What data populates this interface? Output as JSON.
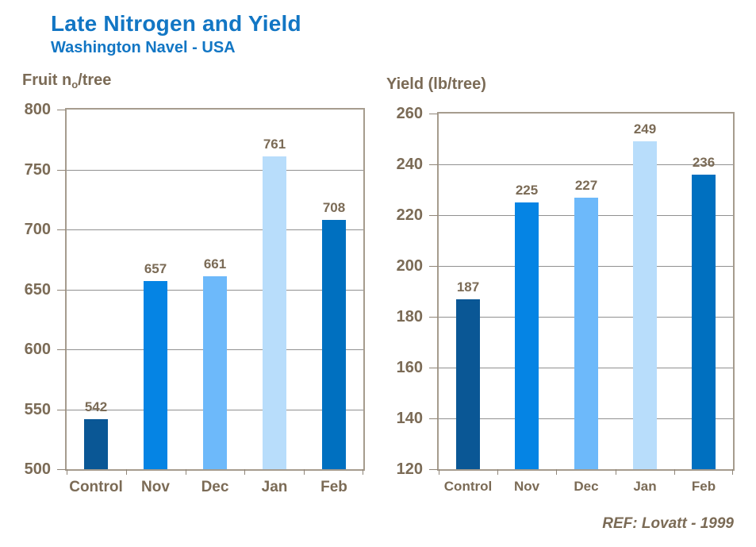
{
  "header": {
    "title": "Late Nitrogen and Yield",
    "subtitle": "Washington Navel - USA"
  },
  "footer": {
    "reference": "REF: Lovatt - 1999"
  },
  "colors": {
    "title_blue": "#1276c4",
    "axis_text_brown": "#7b6b56",
    "grid_gray": "#919191",
    "frame_tan": "#a69c8e",
    "bar_control": "#0a5795",
    "bar_nov": "#0584e4",
    "bar_dec": "#6db9fa",
    "bar_jan": "#b8ddfb",
    "bar_feb": "#0070c0"
  },
  "chart_data": [
    {
      "type": "bar",
      "title": "Fruit no/tree",
      "title_parts": {
        "prefix": "Fruit n",
        "sub": "o",
        "suffix": "/tree"
      },
      "categories": [
        "Control",
        "Nov",
        "Dec",
        "Jan",
        "Feb"
      ],
      "values": [
        542,
        657,
        661,
        761,
        708
      ],
      "ylim": [
        500,
        800
      ],
      "ytick_step": 50,
      "ytick_labels": [
        "500",
        "550",
        "600",
        "650",
        "700",
        "750",
        "800"
      ],
      "bar_colors": [
        "#0a5795",
        "#0584e4",
        "#6db9fa",
        "#b8ddfb",
        "#0070c0"
      ],
      "grid": true,
      "legend": "none",
      "xlabel": "",
      "ylabel": "Fruit no/tree"
    },
    {
      "type": "bar",
      "title": "Yield (lb/tree)",
      "categories": [
        "Control",
        "Nov",
        "Dec",
        "Jan",
        "Feb"
      ],
      "values": [
        187,
        225,
        227,
        249,
        236
      ],
      "ylim": [
        120,
        260
      ],
      "ytick_step": 20,
      "ytick_labels": [
        "120",
        "140",
        "160",
        "180",
        "200",
        "220",
        "240",
        "260"
      ],
      "bar_colors": [
        "#0a5795",
        "#0584e4",
        "#6db9fa",
        "#b8ddfb",
        "#0070c0"
      ],
      "grid": true,
      "legend": "none",
      "xlabel": "",
      "ylabel": "Yield (lb/tree)"
    }
  ]
}
